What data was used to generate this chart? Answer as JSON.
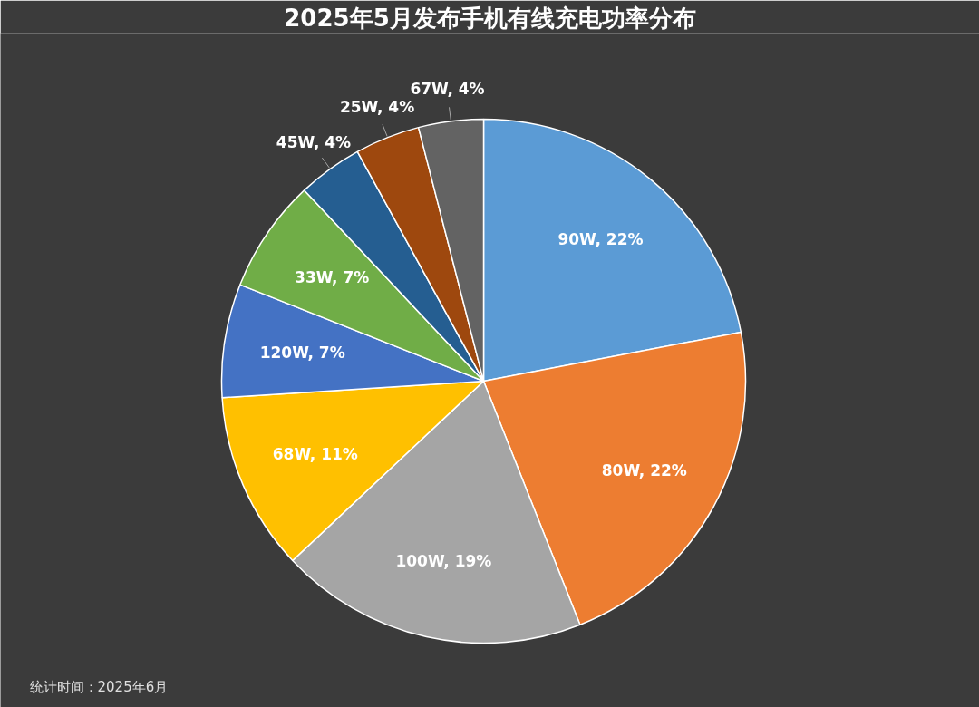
{
  "chart_data": {
    "type": "pie",
    "title": "2025年5月发布手机有线充电功率分布",
    "categories": [
      "90W",
      "80W",
      "100W",
      "68W",
      "120W",
      "33W",
      "45W",
      "25W",
      "67W"
    ],
    "values": [
      22,
      22,
      19,
      11,
      7,
      7,
      4,
      4,
      4
    ],
    "colors": [
      "#5b9bd5",
      "#ed7d31",
      "#a5a5a5",
      "#ffc000",
      "#4472c4",
      "#70ad47",
      "#255e91",
      "#9e480e",
      "#636363"
    ],
    "value_labels": [
      "22%",
      "22%",
      "19%",
      "11%",
      "7%",
      "7%",
      "4%",
      "4%",
      "4%"
    ],
    "annotations": [
      "统计时间：2025年6月"
    ]
  }
}
